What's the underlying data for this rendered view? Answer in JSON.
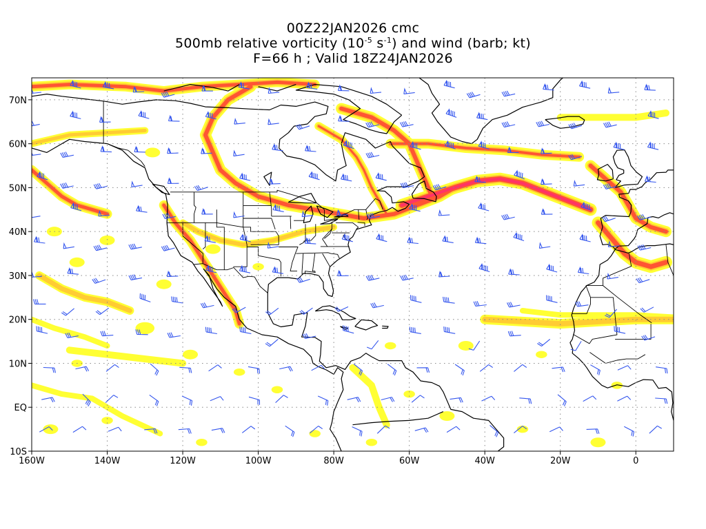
{
  "title": {
    "line1": "00Z22JAN2026 cmc",
    "line2_prefix": "500mb relative vorticity (10",
    "line2_exp1": "-5",
    "line2_mid": " s",
    "line2_exp2": "-1",
    "line2_suffix": ") and wind (barb; kt)",
    "line3": "F=66 h ; Valid 18Z24JAN2026"
  },
  "axes": {
    "lon_labels": [
      "160W",
      "140W",
      "120W",
      "100W",
      "80W",
      "60W",
      "40W",
      "20W",
      "0"
    ],
    "lat_labels": [
      "70N",
      "60N",
      "50N",
      "40N",
      "30N",
      "20N",
      "10N",
      "EQ",
      "10S"
    ],
    "lon_range": [
      -160,
      10
    ],
    "lat_range": [
      -10,
      75
    ]
  },
  "colors": {
    "shade_light": "#ffff33",
    "shade_mid": "#ffcc33",
    "shade_orange": "#ff9933",
    "shade_red": "#ff5533",
    "shade_max": "#ff3366",
    "barb": "#3355ee",
    "grid": "#888888",
    "coast": "#000000"
  },
  "grid": true
}
